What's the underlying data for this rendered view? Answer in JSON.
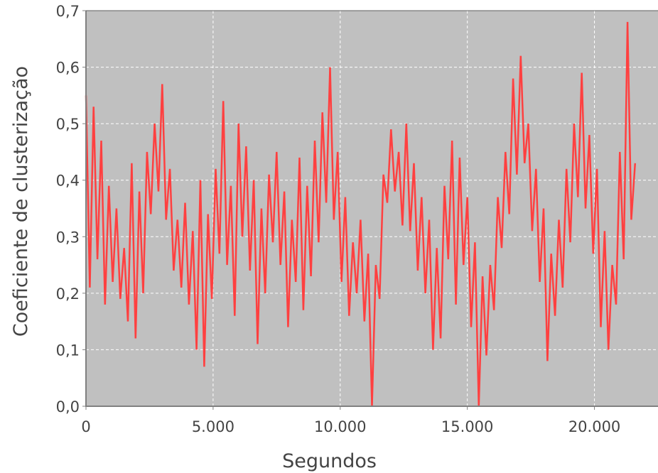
{
  "chart_data": {
    "type": "line",
    "title": "",
    "xlabel": "Segundos",
    "ylabel": "Coeficiente de clusterização",
    "xlim": [
      0,
      22500
    ],
    "ylim": [
      0,
      0.7
    ],
    "xticks": [
      0,
      5000,
      10000,
      15000,
      20000
    ],
    "xtick_labels": [
      "0",
      "5.000",
      "10.000",
      "15.000",
      "20.000"
    ],
    "yticks": [
      0,
      0.1,
      0.2,
      0.3,
      0.4,
      0.5,
      0.6,
      0.7
    ],
    "ytick_labels": [
      "0,0",
      "0,1",
      "0,2",
      "0,3",
      "0,4",
      "0,5",
      "0,6",
      "0,7"
    ],
    "grid": true,
    "colors": {
      "plot_background": "#c0c0c0",
      "series": "#ff4040",
      "grid": "#ffffff"
    },
    "series": [
      {
        "x": [
          0,
          150,
          300,
          450,
          600,
          750,
          900,
          1050,
          1200,
          1350,
          1500,
          1650,
          1800,
          1950,
          2100,
          2250,
          2400,
          2550,
          2700,
          2850,
          3000,
          3150,
          3300,
          3450,
          3600,
          3750,
          3900,
          4050,
          4200,
          4350,
          4500,
          4650,
          4800,
          4950,
          5100,
          5250,
          5400,
          5550,
          5700,
          5850,
          6000,
          6150,
          6300,
          6450,
          6600,
          6750,
          6900,
          7050,
          7200,
          7350,
          7500,
          7650,
          7800,
          7950,
          8100,
          8250,
          8400,
          8550,
          8700,
          8850,
          9000,
          9150,
          9300,
          9450,
          9600,
          9750,
          9900,
          10050,
          10200,
          10350,
          10500,
          10650,
          10800,
          10950,
          11100,
          11250,
          11400,
          11550,
          11700,
          11850,
          12000,
          12150,
          12300,
          12450,
          12600,
          12750,
          12900,
          13050,
          13200,
          13350,
          13500,
          13650,
          13800,
          13950,
          14100,
          14250,
          14400,
          14550,
          14700,
          14850,
          15000,
          15150,
          15300,
          15450,
          15600,
          15750,
          15900,
          16050,
          16200,
          16350,
          16500,
          16650,
          16800,
          16950,
          17100,
          17250,
          17400,
          17550,
          17700,
          17850,
          18000,
          18150,
          18300,
          18450,
          18600,
          18750,
          18900,
          19050,
          19200,
          19350,
          19500,
          19650,
          19800,
          19950,
          20100,
          20250,
          20400,
          20550,
          20700,
          20850,
          21000,
          21150,
          21300,
          21450,
          21600
        ],
        "y": [
          0.55,
          0.21,
          0.53,
          0.26,
          0.47,
          0.18,
          0.39,
          0.22,
          0.35,
          0.19,
          0.28,
          0.15,
          0.43,
          0.12,
          0.38,
          0.2,
          0.45,
          0.34,
          0.5,
          0.38,
          0.57,
          0.33,
          0.42,
          0.24,
          0.33,
          0.21,
          0.36,
          0.18,
          0.31,
          0.1,
          0.4,
          0.07,
          0.34,
          0.19,
          0.42,
          0.27,
          0.54,
          0.25,
          0.39,
          0.16,
          0.5,
          0.3,
          0.46,
          0.24,
          0.4,
          0.11,
          0.35,
          0.2,
          0.41,
          0.29,
          0.45,
          0.25,
          0.38,
          0.14,
          0.33,
          0.22,
          0.44,
          0.17,
          0.39,
          0.23,
          0.47,
          0.29,
          0.52,
          0.36,
          0.6,
          0.33,
          0.45,
          0.22,
          0.37,
          0.16,
          0.29,
          0.2,
          0.33,
          0.15,
          0.27,
          0.0,
          0.25,
          0.19,
          0.41,
          0.36,
          0.49,
          0.38,
          0.45,
          0.32,
          0.5,
          0.31,
          0.43,
          0.24,
          0.37,
          0.2,
          0.33,
          0.1,
          0.28,
          0.12,
          0.39,
          0.26,
          0.47,
          0.18,
          0.44,
          0.25,
          0.37,
          0.14,
          0.29,
          0.0,
          0.23,
          0.09,
          0.25,
          0.17,
          0.37,
          0.28,
          0.45,
          0.34,
          0.58,
          0.41,
          0.62,
          0.43,
          0.5,
          0.31,
          0.42,
          0.22,
          0.35,
          0.08,
          0.27,
          0.16,
          0.33,
          0.21,
          0.42,
          0.29,
          0.5,
          0.37,
          0.59,
          0.35,
          0.48,
          0.27,
          0.42,
          0.14,
          0.31,
          0.1,
          0.25,
          0.18,
          0.45,
          0.26,
          0.68,
          0.33,
          0.43
        ]
      }
    ]
  }
}
